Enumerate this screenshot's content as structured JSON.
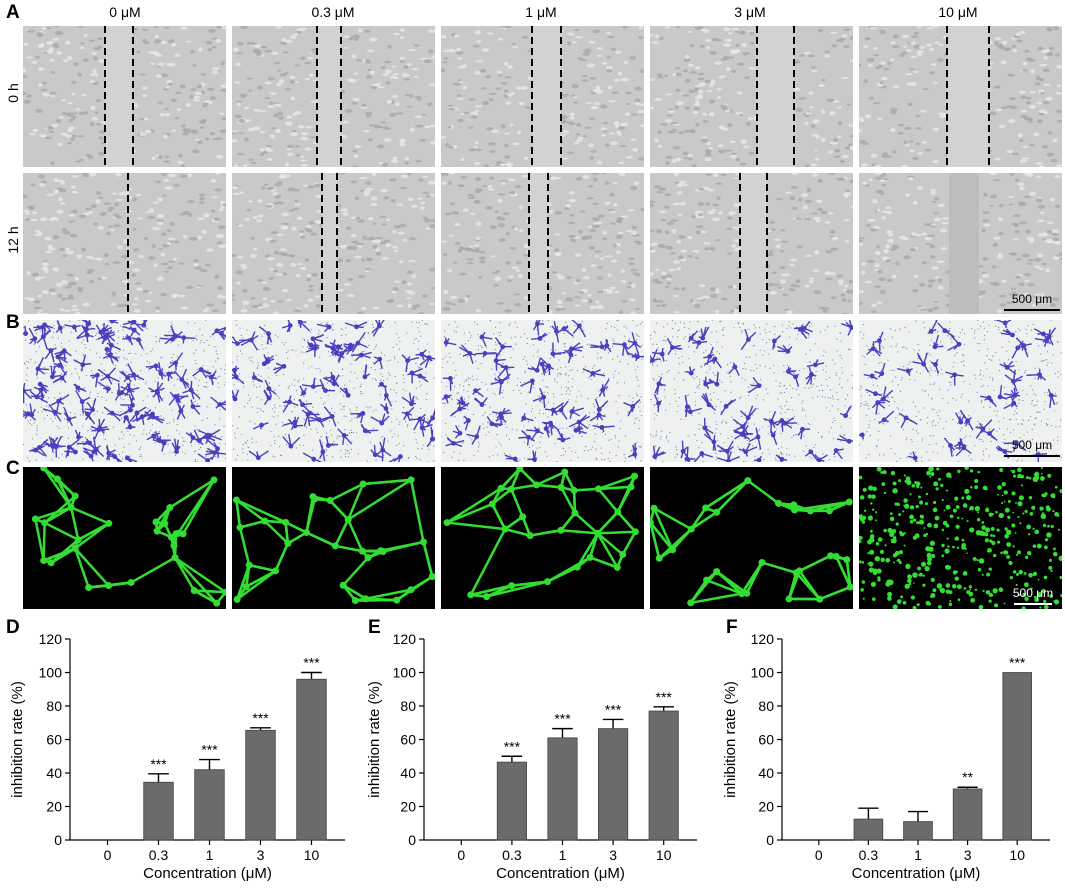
{
  "panel_labels": {
    "a": "A",
    "b": "B",
    "c": "C",
    "d": "D",
    "e": "E",
    "f": "F"
  },
  "concentrations": [
    "0 μM",
    "0.3 μM",
    "1 μM",
    "3 μM",
    "10 μM"
  ],
  "row_labels": [
    "0 h",
    "12 h"
  ],
  "scale_bar_label": "500 μm",
  "colors": {
    "bar": "#6b6b6b",
    "scratch_bg": "#c9c9c9",
    "transwell_bg": "#eef1ef",
    "stain": "#4a3fbf",
    "tube_bg": "#000000",
    "tube": "#33dd33"
  },
  "chart_data": [
    {
      "type": "bar",
      "categories": [
        "0",
        "0.3",
        "1",
        "3",
        "10"
      ],
      "values": [
        0,
        34.5,
        42,
        65.5,
        96
      ],
      "errors": [
        0,
        5,
        6,
        1.5,
        4
      ],
      "significance": [
        "",
        "***",
        "***",
        "***",
        "***"
      ],
      "xlabel": "Concentration (μM)",
      "ylabel": "inhibition rate (%)",
      "ylim": [
        0,
        120
      ],
      "yticks": [
        0,
        20,
        40,
        60,
        80,
        100,
        120
      ]
    },
    {
      "type": "bar",
      "categories": [
        "0",
        "0.3",
        "1",
        "3",
        "10"
      ],
      "values": [
        0,
        46.5,
        61,
        66.5,
        77
      ],
      "errors": [
        0,
        3.5,
        5.5,
        5.5,
        2.5
      ],
      "significance": [
        "",
        "***",
        "***",
        "***",
        "***"
      ],
      "xlabel": "Concentration (μM)",
      "ylabel": "inhibition rate (%)",
      "ylim": [
        0,
        120
      ],
      "yticks": [
        0,
        20,
        40,
        60,
        80,
        100,
        120
      ]
    },
    {
      "type": "bar",
      "categories": [
        "0",
        "0.3",
        "1",
        "3",
        "10"
      ],
      "values": [
        0,
        12.5,
        11,
        30.5,
        100
      ],
      "errors": [
        0,
        6.5,
        6,
        1,
        0
      ],
      "significance": [
        "",
        "",
        "",
        "**",
        "***"
      ],
      "xlabel": "Concentration (μM)",
      "ylabel": "inhibition rate (%)",
      "ylim": [
        0,
        120
      ],
      "yticks": [
        0,
        20,
        40,
        60,
        80,
        100,
        120
      ]
    }
  ]
}
